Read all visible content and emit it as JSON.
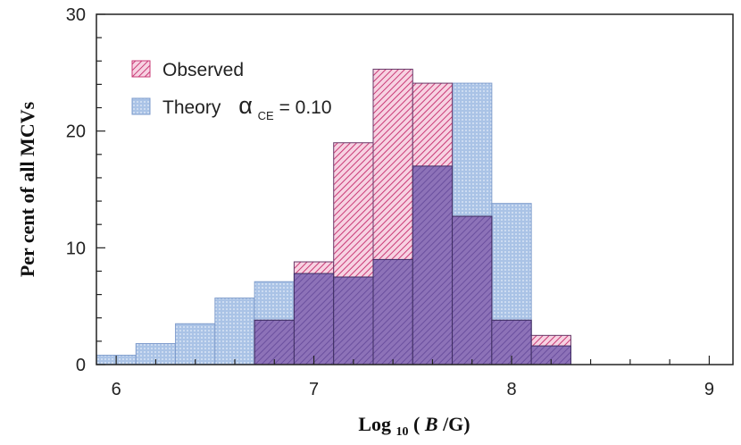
{
  "chart_data": {
    "type": "bar",
    "xlabel": {
      "main": "Log",
      "sub": "10",
      "open": " (",
      "var": "B",
      "rest": " /G)"
    },
    "ylabel": "Per cent of all MCVs",
    "xlim": [
      5.9,
      9.12
    ],
    "ylim": [
      0,
      30
    ],
    "x_ticks": [
      "6",
      "7",
      "8",
      "9"
    ],
    "y_ticks": [
      "0",
      "10",
      "20",
      "30"
    ],
    "bin_width": 0.2,
    "series": [
      {
        "name": "Observed",
        "color": "#d9467f",
        "bins": [
          {
            "x0": 6.7,
            "value": 3.8
          },
          {
            "x0": 6.9,
            "value": 8.8
          },
          {
            "x0": 7.1,
            "value": 19.0
          },
          {
            "x0": 7.3,
            "value": 25.3
          },
          {
            "x0": 7.5,
            "value": 24.1
          },
          {
            "x0": 7.7,
            "value": 12.7
          },
          {
            "x0": 7.9,
            "value": 3.8
          },
          {
            "x0": 8.1,
            "value": 2.5
          }
        ]
      },
      {
        "name": "Theory",
        "legend_suffix": {
          "alpha": "α",
          "sub": "CE",
          "value": " = 0.10"
        },
        "color": "#8fb0dd",
        "bins": [
          {
            "x0": 5.9,
            "value": 0.8
          },
          {
            "x0": 6.1,
            "value": 1.8
          },
          {
            "x0": 6.3,
            "value": 3.5
          },
          {
            "x0": 6.5,
            "value": 5.7
          },
          {
            "x0": 6.7,
            "value": 7.1
          },
          {
            "x0": 6.9,
            "value": 7.8
          },
          {
            "x0": 7.1,
            "value": 7.5
          },
          {
            "x0": 7.3,
            "value": 9.0
          },
          {
            "x0": 7.5,
            "value": 17.0
          },
          {
            "x0": 7.7,
            "value": 24.1
          },
          {
            "x0": 7.9,
            "value": 13.8
          },
          {
            "x0": 8.1,
            "value": 1.6
          }
        ]
      }
    ],
    "overlap_color": "#7a62ab",
    "legend_position": "top-left"
  }
}
